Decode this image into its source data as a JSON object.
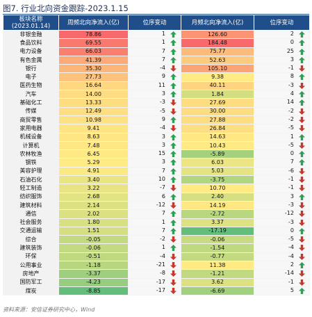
{
  "title": "图7. 行业北向资金跟踪-2023.1.15",
  "header": {
    "sector": "板块名称",
    "date": "(2023.01.14)",
    "weekly": "周频北向净流入(亿)",
    "weekly_rank": "位序变动",
    "monthly": "月频北向净流入(亿)",
    "monthly_rank": "位序变动"
  },
  "rows": [
    {
      "name": "非银金融",
      "weekly": "78.86",
      "wchg": "1",
      "wdir": "up",
      "monthly": "126.60",
      "mchg": "2",
      "mdir": "up"
    },
    {
      "name": "食品饮料",
      "weekly": "69.55",
      "wchg": "1",
      "wdir": "up",
      "monthly": "184.48",
      "mchg": "0",
      "mdir": "up"
    },
    {
      "name": "电力设备",
      "weekly": "66.03",
      "wchg": "7",
      "wdir": "up",
      "monthly": "75.77",
      "mchg": "25",
      "mdir": "up"
    },
    {
      "name": "有色金属",
      "weekly": "41.39",
      "wchg": "7",
      "wdir": "up",
      "monthly": "52.63",
      "mchg": "3",
      "mdir": "up"
    },
    {
      "name": "银行",
      "weekly": "35.30",
      "wchg": "-4",
      "wdir": "down",
      "monthly": "105.10",
      "mchg": "-1",
      "mdir": "down"
    },
    {
      "name": "电子",
      "weekly": "27.73",
      "wchg": "9",
      "wdir": "up",
      "monthly": "9.38",
      "mchg": "8",
      "mdir": "up"
    },
    {
      "name": "医药生物",
      "weekly": "16.64",
      "wchg": "11",
      "wdir": "up",
      "monthly": "40.11",
      "mchg": "-3",
      "mdir": "down"
    },
    {
      "name": "汽车",
      "weekly": "14.00",
      "wchg": "3",
      "wdir": "up",
      "monthly": "1.84",
      "mchg": "4",
      "mdir": "up"
    },
    {
      "name": "基础化工",
      "weekly": "13.33",
      "wchg": "-3",
      "wdir": "down",
      "monthly": "27.69",
      "mchg": "14",
      "mdir": "up"
    },
    {
      "name": "传媒",
      "weekly": "12.49",
      "wchg": "-5",
      "wdir": "down",
      "monthly": "30.00",
      "mchg": "-2",
      "mdir": "down"
    },
    {
      "name": "商贸零售",
      "weekly": "10.98",
      "wchg": "9",
      "wdir": "up",
      "monthly": "27.88",
      "mchg": "-2",
      "mdir": "down"
    },
    {
      "name": "家用电器",
      "weekly": "9.41",
      "wchg": "-4",
      "wdir": "down",
      "monthly": "26.84",
      "mchg": "-5",
      "mdir": "down"
    },
    {
      "name": "机械设备",
      "weekly": "8.63",
      "wchg": "3",
      "wdir": "up",
      "monthly": "14.63",
      "mchg": "1",
      "mdir": "up"
    },
    {
      "name": "计算机",
      "weekly": "7.48",
      "wchg": "3",
      "wdir": "up",
      "monthly": "10.43",
      "mchg": "-5",
      "mdir": "down"
    },
    {
      "name": "农林牧渔",
      "weekly": "6.45",
      "wchg": "15",
      "wdir": "up",
      "monthly": "-5.89",
      "mchg": "0",
      "mdir": "up"
    },
    {
      "name": "钢铁",
      "weekly": "5.29",
      "wchg": "3",
      "wdir": "up",
      "monthly": "6.03",
      "mchg": "7",
      "mdir": "up"
    },
    {
      "name": "美容护理",
      "weekly": "4.91",
      "wchg": "7",
      "wdir": "up",
      "monthly": "5.03",
      "mchg": "-6",
      "mdir": "down"
    },
    {
      "name": "石油石化",
      "weekly": "3.40",
      "wchg": "10",
      "wdir": "up",
      "monthly": "-3.75",
      "mchg": "-1",
      "mdir": "down"
    },
    {
      "name": "轻工制造",
      "weekly": "3.22",
      "wchg": "-7",
      "wdir": "down",
      "monthly": "10.70",
      "mchg": "-1",
      "mdir": "down"
    },
    {
      "name": "纺织服饰",
      "weekly": "2.68",
      "wchg": "6",
      "wdir": "up",
      "monthly": "2.40",
      "mchg": "3",
      "mdir": "up"
    },
    {
      "name": "建筑材料",
      "weekly": "2.14",
      "wchg": "-12",
      "wdir": "down",
      "monthly": "14.19",
      "mchg": "-3",
      "mdir": "down"
    },
    {
      "name": "通信",
      "weekly": "2.02",
      "wchg": "7",
      "wdir": "up",
      "monthly": "-2.72",
      "mchg": "-12",
      "mdir": "down"
    },
    {
      "name": "社会服务",
      "weekly": "1.80",
      "wchg": "1",
      "wdir": "up",
      "monthly": "3.37",
      "mchg": "-3",
      "mdir": "down"
    },
    {
      "name": "交通运输",
      "weekly": "1.51",
      "wchg": "7",
      "wdir": "up",
      "monthly": "-17.19",
      "mchg": "0",
      "mdir": "up"
    },
    {
      "name": "综合",
      "weekly": "-0.05",
      "wchg": "-2",
      "wdir": "down",
      "monthly": "-0.06",
      "mchg": "-5",
      "mdir": "down"
    },
    {
      "name": "建筑装饰",
      "weekly": "-0.06",
      "wchg": "1",
      "wdir": "up",
      "monthly": "-1.54",
      "mchg": "-4",
      "mdir": "down"
    },
    {
      "name": "环保",
      "weekly": "-0.51",
      "wchg": "-4",
      "wdir": "down",
      "monthly": "-0.77",
      "mchg": "-4",
      "mdir": "down"
    },
    {
      "name": "公用事业",
      "weekly": "-1.18",
      "wchg": "-21",
      "wdir": "down",
      "monthly": "11.38",
      "mchg": "2",
      "mdir": "up"
    },
    {
      "name": "房地产",
      "weekly": "-3.37",
      "wchg": "-8",
      "wdir": "down",
      "monthly": "-1.21",
      "mchg": "-14",
      "mdir": "down"
    },
    {
      "name": "国防军工",
      "weekly": "-4.23",
      "wchg": "-17",
      "wdir": "down",
      "monthly": "3.62",
      "mchg": "-1",
      "mdir": "down"
    },
    {
      "name": "煤炭",
      "weekly": "-8.85",
      "wchg": "-17",
      "wdir": "down",
      "monthly": "-6.69",
      "mchg": "5",
      "mdir": "up"
    }
  ],
  "footer": "资料来源：安信证券研究中心，Wind",
  "colors": {
    "header_bg": "#1f4e8a",
    "up_icon": "#2e9e57",
    "down_icon": "#c0392b",
    "scale_high": "#f8696b",
    "scale_mid": "#ffeb84",
    "scale_low": "#63be7b"
  },
  "icons": {
    "up": "up-arrow-icon",
    "down": "down-arrow-icon"
  }
}
